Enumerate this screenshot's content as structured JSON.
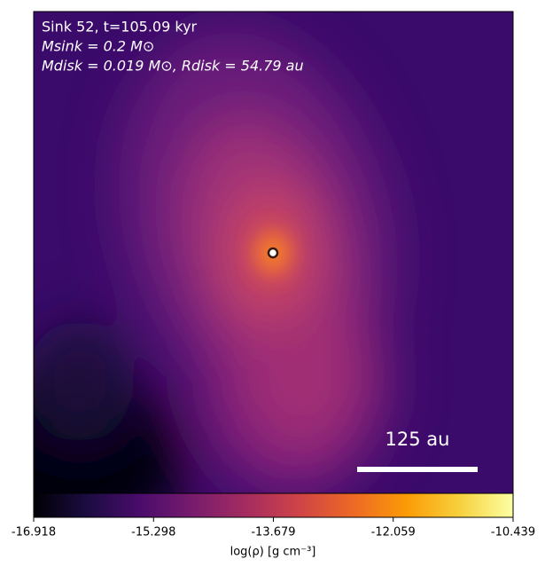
{
  "chart_data": {
    "type": "heatmap",
    "annotations": [
      "Sink 52, t=105.09 kyr",
      "Msink = 0.2 M⊙",
      "Mdisk = 0.019 M⊙, Rdisk = 54.79 au"
    ],
    "scale_bar_label": "125 au",
    "colormap": "inferno",
    "colorbar_label": "log(ρ) [g cm⁻³]",
    "clim": [
      -16.918,
      -10.439
    ],
    "cticks": [
      -16.918,
      -15.298,
      -13.679,
      -12.059,
      -10.439
    ]
  }
}
